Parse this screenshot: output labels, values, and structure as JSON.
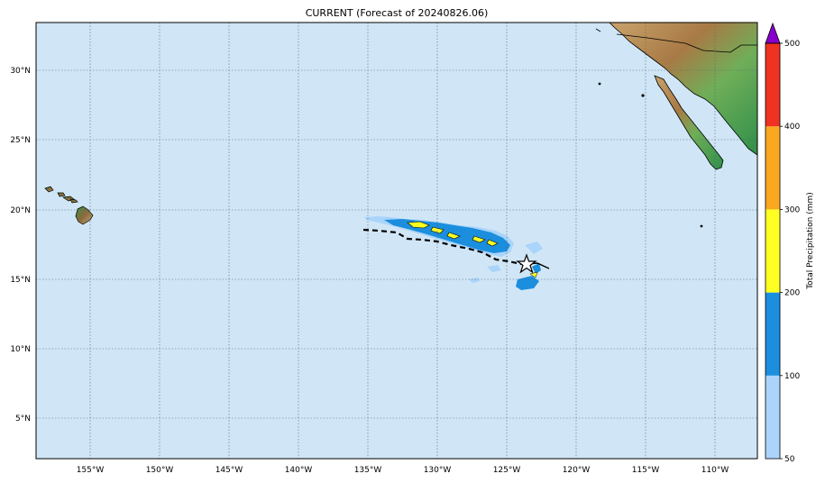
{
  "title": "CURRENT (Forecast of 20240826.06)",
  "map": {
    "ocean_color": "#d0e6f6",
    "grid_style": "dotted",
    "lon_ticks": [
      "155°W",
      "150°W",
      "145°W",
      "140°W",
      "135°W",
      "130°W",
      "125°W",
      "120°W",
      "115°W",
      "110°W"
    ],
    "lat_ticks": [
      "30°N",
      "25°N",
      "20°N",
      "15°N",
      "10°N",
      "5°N"
    ]
  },
  "colorbar": {
    "label": "Total Precipitation (mm)",
    "levels": [
      "50",
      "100",
      "200",
      "300",
      "400",
      "500"
    ],
    "colors": [
      "#aad4fa",
      "#1b8ede",
      "#ffff22",
      "#f9a820",
      "#ef3222"
    ],
    "extend_color": "#8800cc"
  },
  "storm": {
    "marker": "star-icon",
    "track_style": "dashed"
  }
}
